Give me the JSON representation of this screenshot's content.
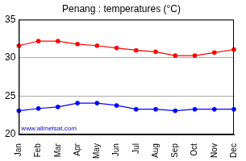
{
  "chart_data": {
    "type": "line",
    "title": "Penang : temperatures (°C)",
    "categories": [
      "Jan",
      "Feb",
      "Mar",
      "Apr",
      "May",
      "Jun",
      "Jul",
      "Aug",
      "Sep",
      "Oct",
      "Nov",
      "Dec"
    ],
    "series": [
      {
        "color": "#ff0000",
        "marker": "circle",
        "values": [
          31.6,
          32.2,
          32.2,
          31.8,
          31.6,
          31.3,
          31.0,
          30.8,
          30.3,
          30.3,
          30.7,
          31.1
        ]
      },
      {
        "color": "#0000ff",
        "marker": "circle",
        "values": [
          23.1,
          23.4,
          23.6,
          24.1,
          24.1,
          23.8,
          23.3,
          23.3,
          23.1,
          23.3,
          23.3,
          23.3
        ]
      }
    ],
    "ylim": [
      20,
      35
    ],
    "yticks": [
      20,
      25,
      30,
      35
    ],
    "grid": true,
    "annotations": [
      "www.allmetsat.com"
    ]
  }
}
